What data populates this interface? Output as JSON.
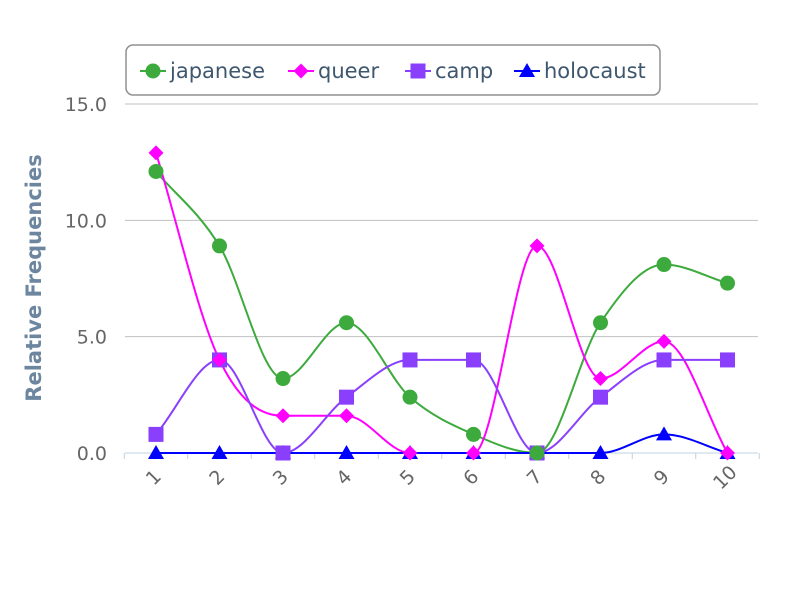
{
  "chart_data": {
    "type": "line",
    "title": "",
    "xlabel": "",
    "ylabel": "Relative Frequencies",
    "categories": [
      "1",
      "2",
      "3",
      "4",
      "5",
      "6",
      "7",
      "8",
      "9",
      "10"
    ],
    "ylim": [
      0,
      15
    ],
    "y_ticks": [
      "0.0",
      "5.0",
      "10.0",
      "15.0"
    ],
    "grid": true,
    "legend_position": "top",
    "series": [
      {
        "name": "japanese",
        "color": "#3daa3d",
        "marker": "circle",
        "values": [
          12.1,
          8.9,
          3.2,
          5.6,
          2.4,
          0.8,
          0.0,
          5.6,
          8.1,
          7.3
        ]
      },
      {
        "name": "queer",
        "color": "#ff00ff",
        "marker": "diamond",
        "values": [
          12.9,
          4.0,
          1.6,
          1.6,
          0.0,
          0.0,
          8.9,
          3.2,
          4.8,
          0.0
        ]
      },
      {
        "name": "camp",
        "color": "#8a3ffc",
        "marker": "square",
        "values": [
          0.8,
          4.0,
          0.0,
          2.4,
          4.0,
          4.0,
          0.0,
          2.4,
          4.0,
          4.0
        ]
      },
      {
        "name": "holocaust",
        "color": "#0000ff",
        "marker": "triangle",
        "values": [
          0.0,
          0.0,
          0.0,
          0.0,
          0.0,
          0.0,
          0.0,
          0.0,
          0.8,
          0.0
        ]
      }
    ]
  }
}
